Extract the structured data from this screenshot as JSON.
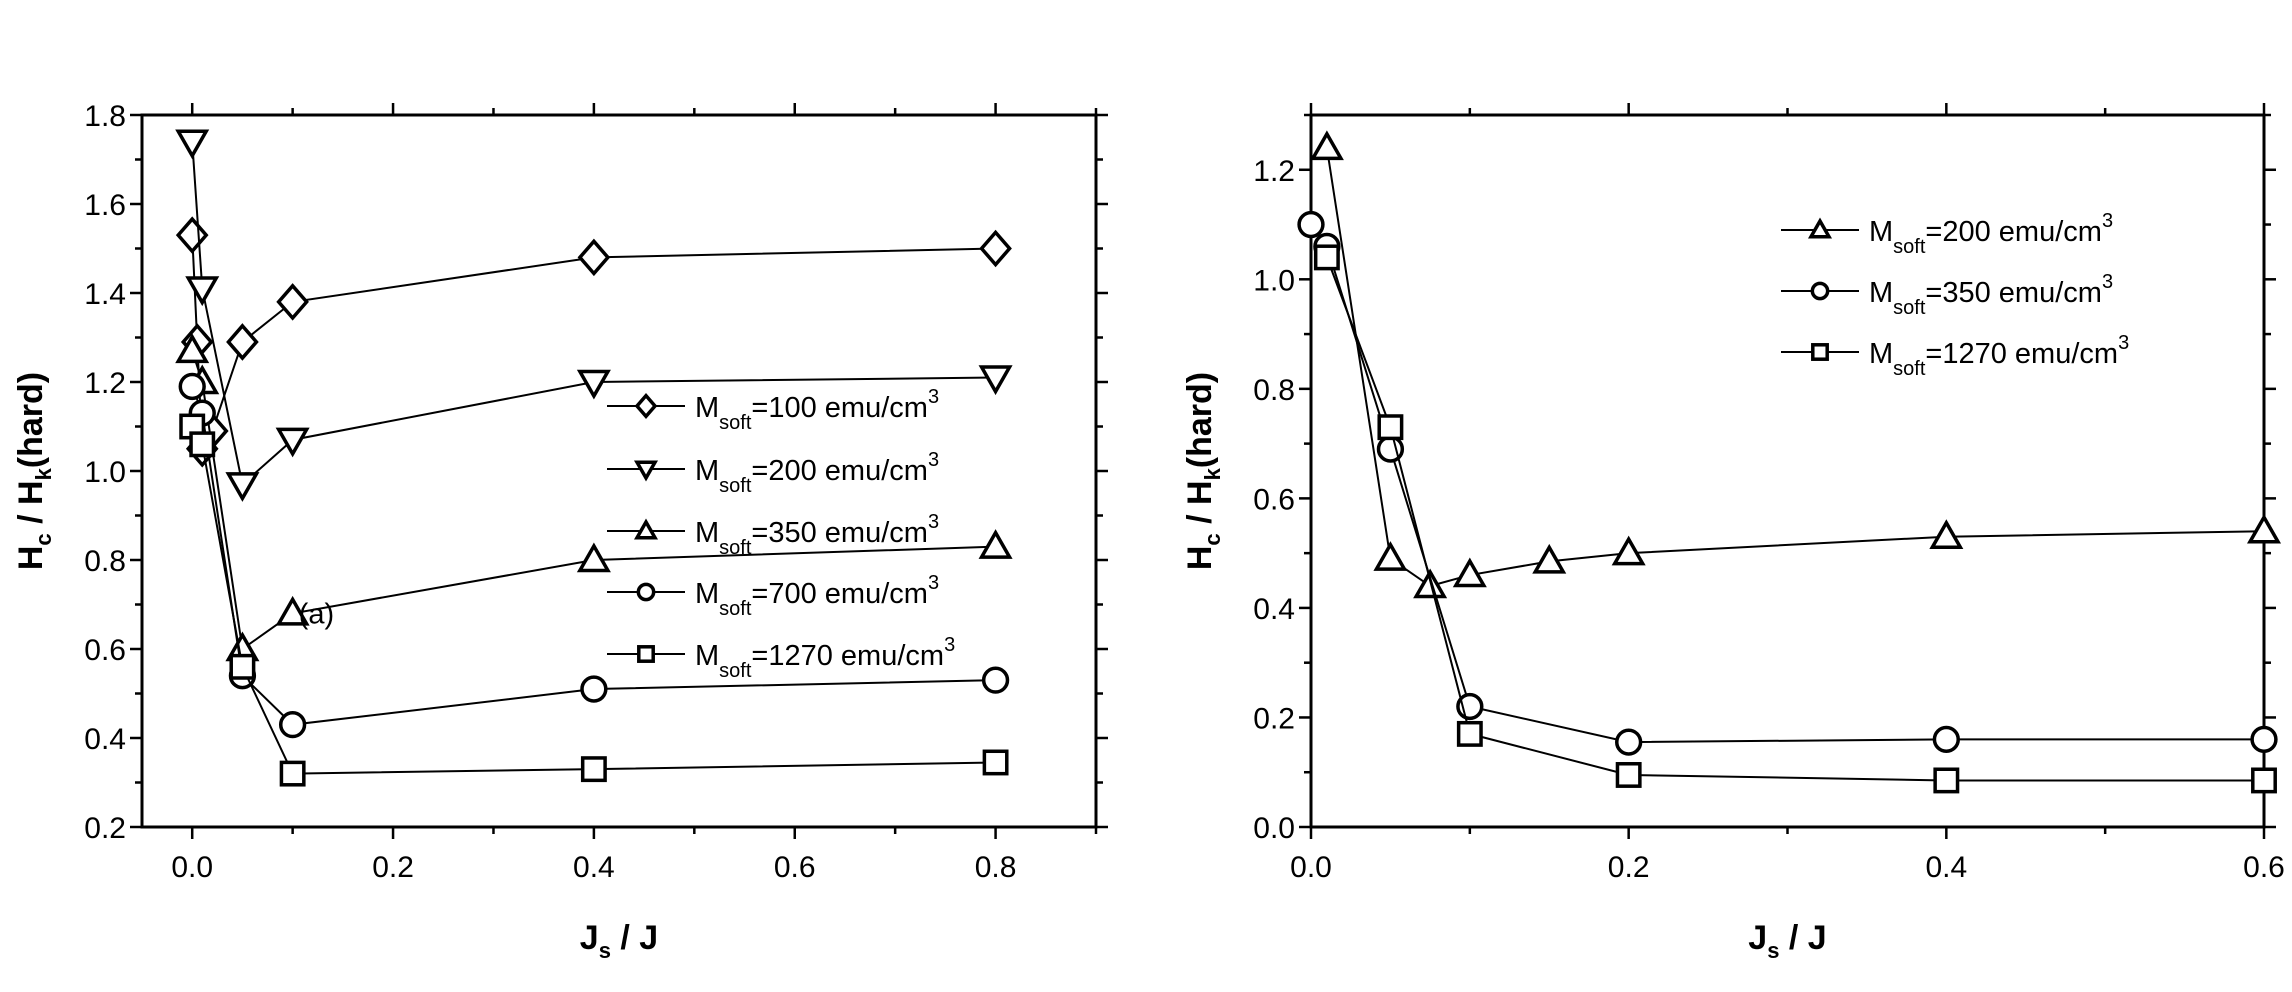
{
  "chart_data": [
    {
      "type": "line",
      "xlabel": {
        "main": "J",
        "sub": "s",
        "rest": " / J"
      },
      "ylabel": {
        "p1": "H",
        "s1": "c",
        "p2": " / H",
        "s2": "k",
        "p3": "(hard)"
      },
      "xlim": [
        -0.05,
        0.9
      ],
      "ylim": [
        0.2,
        1.8
      ],
      "xticks": [
        0.0,
        0.2,
        0.4,
        0.6,
        0.8
      ],
      "xtick_labels": [
        "0.0",
        "0.2",
        "0.4",
        "0.6",
        "0.8"
      ],
      "yticks": [
        0.2,
        0.4,
        0.6,
        0.8,
        1.0,
        1.2,
        1.4,
        1.6,
        1.8
      ],
      "ytick_labels": [
        "0.2",
        "0.4",
        "0.6",
        "0.8",
        "1.0",
        "1.2",
        "1.4",
        "1.6",
        "1.8"
      ],
      "grid": false,
      "legend_placement": "center-right",
      "annotation": {
        "text": "(a)",
        "x": 0.11,
        "y": 0.68
      },
      "series": [
        {
          "name": {
            "m": "M",
            "sub": "soft",
            "val": "=100 emu/cm",
            "sup": "3"
          },
          "marker": "diamond",
          "x": [
            0,
            0.005,
            0.01,
            0.02,
            0.05,
            0.1,
            0.4,
            0.8
          ],
          "y": [
            1.53,
            1.29,
            1.05,
            1.09,
            1.29,
            1.38,
            1.48,
            1.5
          ]
        },
        {
          "name": {
            "m": "M",
            "sub": "soft",
            "val": "=200 emu/cm",
            "sup": "3"
          },
          "marker": "triangle-down",
          "x": [
            0,
            0.01,
            0.05,
            0.1,
            0.4,
            0.8
          ],
          "y": [
            1.74,
            1.41,
            0.97,
            1.07,
            1.2,
            1.21
          ]
        },
        {
          "name": {
            "m": "M",
            "sub": "soft",
            "val": "=350 emu/cm",
            "sup": "3"
          },
          "marker": "triangle-up",
          "x": [
            0,
            0.01,
            0.05,
            0.1,
            0.4,
            0.8
          ],
          "y": [
            1.27,
            1.2,
            0.6,
            0.68,
            0.8,
            0.83
          ]
        },
        {
          "name": {
            "m": "M",
            "sub": "soft",
            "val": "=700 emu/cm",
            "sup": "3"
          },
          "marker": "circle",
          "x": [
            0,
            0.01,
            0.05,
            0.1,
            0.4,
            0.8
          ],
          "y": [
            1.19,
            1.13,
            0.54,
            0.43,
            0.51,
            0.53
          ]
        },
        {
          "name": {
            "m": "M",
            "sub": "soft",
            "val": "=1270 emu/cm",
            "sup": "3"
          },
          "marker": "square",
          "x": [
            0,
            0.01,
            0.05,
            0.1,
            0.4,
            0.8
          ],
          "y": [
            1.1,
            1.06,
            0.56,
            0.32,
            0.33,
            0.345
          ]
        }
      ]
    },
    {
      "type": "line",
      "xlabel": {
        "main": "J",
        "sub": "s",
        "rest": " / J"
      },
      "ylabel": {
        "p1": "H",
        "s1": "c",
        "p2": " / H",
        "s2": "k",
        "p3": "(hard)"
      },
      "xlim": [
        0,
        0.6
      ],
      "ylim": [
        0,
        1.3
      ],
      "xticks": [
        0.0,
        0.2,
        0.4,
        0.6
      ],
      "xtick_labels": [
        "0.0",
        "0.2",
        "0.4",
        "0.6"
      ],
      "yticks": [
        0,
        0.2,
        0.4,
        0.6,
        0.8,
        1.0,
        1.2
      ],
      "ytick_labels": [
        "0.0",
        "0.2",
        "0.4",
        "0.6",
        "0.8",
        "1.0",
        "1.2"
      ],
      "grid": false,
      "legend_placement": "top-right",
      "series": [
        {
          "name": {
            "m": "M",
            "sub": "soft",
            "val": "=200 emu/cm",
            "sup": "3"
          },
          "marker": "triangle-up",
          "x": [
            0.01,
            0.05,
            0.075,
            0.1,
            0.15,
            0.2,
            0.4,
            0.6
          ],
          "y": [
            1.24,
            0.49,
            0.44,
            0.46,
            0.485,
            0.5,
            0.53,
            0.54
          ]
        },
        {
          "name": {
            "m": "M",
            "sub": "soft",
            "val": "=350 emu/cm",
            "sup": "3"
          },
          "marker": "circle",
          "x": [
            0,
            0.01,
            0.05,
            0.1,
            0.2,
            0.4,
            0.6
          ],
          "y": [
            1.1,
            1.06,
            0.69,
            0.22,
            0.155,
            0.16,
            0.16
          ]
        },
        {
          "name": {
            "m": "M",
            "sub": "soft",
            "val": "=1270 emu/cm",
            "sup": "3"
          },
          "marker": "square",
          "x": [
            0.01,
            0.05,
            0.1,
            0.2,
            0.4,
            0.6
          ],
          "y": [
            1.04,
            0.73,
            0.17,
            0.095,
            0.085,
            0.085
          ]
        }
      ]
    }
  ]
}
